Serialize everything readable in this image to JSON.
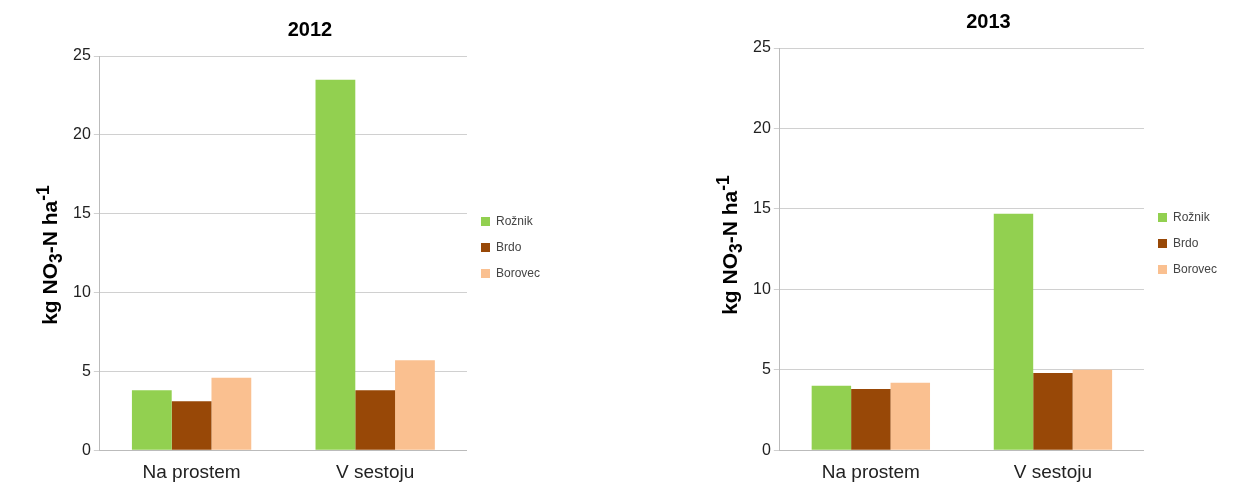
{
  "chart_data": [
    {
      "type": "bar",
      "title": "2012",
      "ylabel": "kg NO$_{3}$-N ha$^{-1}$",
      "categories": [
        "Na prostem",
        "V sestoju"
      ],
      "series": [
        {
          "name": "Rožnik",
          "color": "#92d050",
          "values": [
            3.8,
            23.5
          ]
        },
        {
          "name": "Brdo",
          "color": "#984807",
          "values": [
            3.1,
            3.8
          ]
        },
        {
          "name": "Borovec",
          "color": "#fac090",
          "values": [
            4.6,
            5.7
          ]
        }
      ],
      "ylim": [
        0,
        25
      ],
      "yticks": [
        0,
        5,
        10,
        15,
        20,
        25
      ],
      "grid": "y",
      "legend": "right"
    },
    {
      "type": "bar",
      "title": "2013",
      "ylabel": "kg NO$_{3}$-N ha$^{-1}$",
      "categories": [
        "Na prostem",
        "V sestoju"
      ],
      "series": [
        {
          "name": "Rožnik",
          "color": "#92d050",
          "values": [
            4.0,
            14.7
          ]
        },
        {
          "name": "Brdo",
          "color": "#984807",
          "values": [
            3.8,
            4.8
          ]
        },
        {
          "name": "Borovec",
          "color": "#fac090",
          "values": [
            4.2,
            5.0
          ]
        }
      ],
      "ylim": [
        0,
        25
      ],
      "yticks": [
        0,
        5,
        10,
        15,
        20,
        25
      ],
      "grid": "y",
      "legend": "right"
    }
  ]
}
